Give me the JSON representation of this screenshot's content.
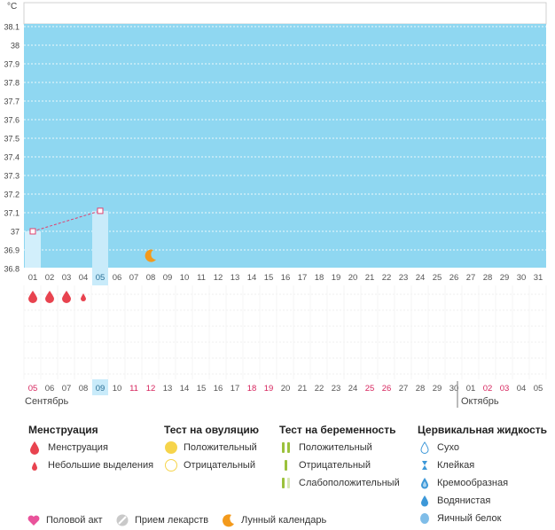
{
  "chart": {
    "unit": "°C",
    "y_ticks": [
      "38.1",
      "38",
      "37.9",
      "37.8",
      "37.7",
      "37.6",
      "37.5",
      "37.4",
      "37.3",
      "37.2",
      "37.1",
      "37",
      "36.9",
      "36.8"
    ],
    "top_days": [
      "01",
      "02",
      "03",
      "04",
      "05",
      "06",
      "07",
      "08",
      "09",
      "10",
      "11",
      "12",
      "13",
      "14",
      "15",
      "16",
      "17",
      "18",
      "19",
      "20",
      "21",
      "22",
      "23",
      "24",
      "25",
      "26",
      "27",
      "28",
      "29",
      "30",
      "31"
    ],
    "selected_index": 4
  },
  "chart_data": {
    "type": "line",
    "ylim": [
      36.8,
      38.2
    ],
    "series": [
      {
        "values": [
          37.0,
          null,
          null,
          null,
          37.11
        ]
      }
    ],
    "bars": [
      37.0,
      null,
      null,
      null,
      37.11
    ]
  },
  "menstruation_marks": [
    "full",
    "full",
    "full",
    "light"
  ],
  "moon_day_index": 7,
  "bottom_dates": [
    {
      "d": "05",
      "red": true
    },
    {
      "d": "06",
      "red": false
    },
    {
      "d": "07",
      "red": false
    },
    {
      "d": "08",
      "red": false
    },
    {
      "d": "09",
      "red": false,
      "selected": true
    },
    {
      "d": "10",
      "red": false
    },
    {
      "d": "11",
      "red": true
    },
    {
      "d": "12",
      "red": true
    },
    {
      "d": "13",
      "red": false
    },
    {
      "d": "14",
      "red": false
    },
    {
      "d": "15",
      "red": false
    },
    {
      "d": "16",
      "red": false
    },
    {
      "d": "17",
      "red": false
    },
    {
      "d": "18",
      "red": true
    },
    {
      "d": "19",
      "red": true
    },
    {
      "d": "20",
      "red": false
    },
    {
      "d": "21",
      "red": false
    },
    {
      "d": "22",
      "red": false
    },
    {
      "d": "23",
      "red": false
    },
    {
      "d": "24",
      "red": false
    },
    {
      "d": "25",
      "red": true
    },
    {
      "d": "26",
      "red": true
    },
    {
      "d": "27",
      "red": false
    },
    {
      "d": "28",
      "red": false
    },
    {
      "d": "29",
      "red": false
    },
    {
      "d": "30",
      "red": false
    },
    {
      "d": "01",
      "red": false
    },
    {
      "d": "02",
      "red": true
    },
    {
      "d": "03",
      "red": true
    },
    {
      "d": "04",
      "red": false
    },
    {
      "d": "05",
      "red": false
    }
  ],
  "month_labels": {
    "first": "Сентябрь",
    "second": "Октябрь"
  },
  "legend": {
    "menstruation": {
      "title": "Менструация",
      "items": [
        "Менструация",
        "Небольшие выделения"
      ]
    },
    "ovulation": {
      "title": "Тест на овуляцию",
      "items": [
        "Положительный",
        "Отрицательный"
      ]
    },
    "pregnancy": {
      "title": "Тест на беременность",
      "items": [
        "Положительный",
        "Отрицательный",
        "Слабоположительный"
      ]
    },
    "cervical": {
      "title": "Цервикальная жидкость",
      "items": [
        "Сухо",
        "Клейкая",
        "Кремообразная",
        "Водянистая",
        "Яичный белок"
      ]
    },
    "bottom": [
      "Половой акт",
      "Прием лекарств",
      "Лунный календарь"
    ]
  },
  "colors": {
    "chart_bg": "#8fd7f1",
    "selected_bar": "#c9ebfa",
    "line": "#e0416e",
    "drop": "#e8434f",
    "accent_red": "#d6245d",
    "moon": "#f39a1c",
    "yellow": "#f6d44b",
    "green": "#9bc13c",
    "blue": "#3d98d8",
    "heart": "#e9539b"
  }
}
